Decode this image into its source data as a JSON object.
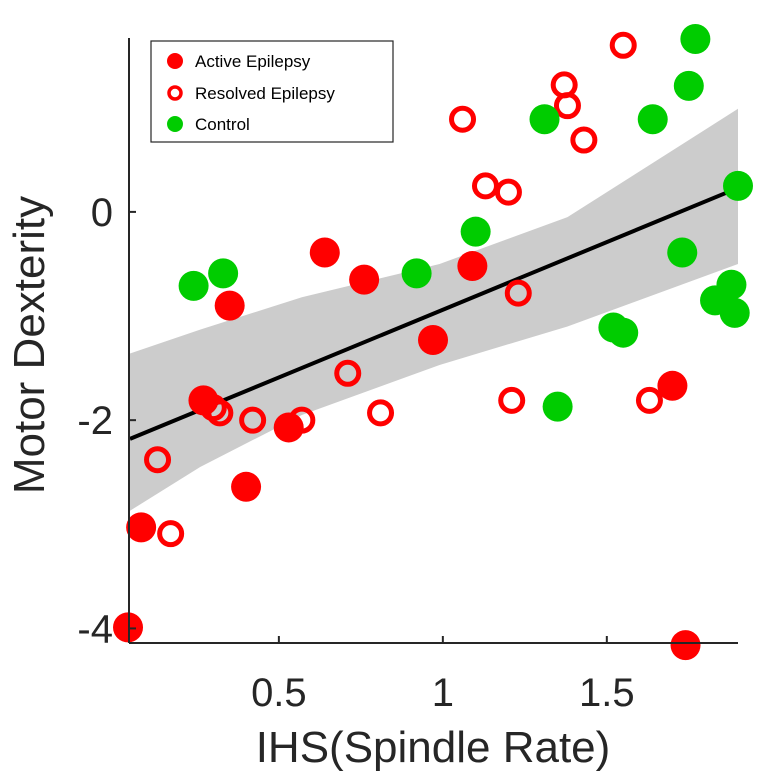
{
  "chart_data": {
    "type": "scatter",
    "title": "",
    "xlabel": "IHS(Spindle Rate)",
    "ylabel": "Motor Dexterity",
    "xlim": [
      0.043,
      1.9
    ],
    "ylim": [
      -4.14,
      1.67
    ],
    "xticks": [
      0.5,
      1,
      1.5
    ],
    "xtick_labels": [
      "0.5",
      "1",
      "1.5"
    ],
    "yticks": [
      0,
      -2,
      -4
    ],
    "ytick_labels": [
      "0",
      "-2",
      "-4"
    ],
    "grid": false,
    "legend": {
      "placement": "top-left",
      "entries": [
        "Active Epilepsy",
        "Resolved Epilepsy",
        "Control"
      ]
    },
    "series": [
      {
        "name": "Active Epilepsy",
        "marker": "filled-circle",
        "color": "#ff0000",
        "points": [
          [
            0.04,
            -3.99
          ],
          [
            0.08,
            -3.03
          ],
          [
            0.27,
            -1.81
          ],
          [
            0.35,
            -0.9
          ],
          [
            0.4,
            -2.64
          ],
          [
            0.53,
            -2.07
          ],
          [
            0.64,
            -0.39
          ],
          [
            0.76,
            -0.65
          ],
          [
            0.97,
            -1.23
          ],
          [
            1.09,
            -0.52
          ],
          [
            1.7,
            -1.67
          ],
          [
            1.74,
            -4.16
          ]
        ]
      },
      {
        "name": "Resolved Epilepsy",
        "marker": "open-circle",
        "color": "#ff0000",
        "points": [
          [
            0.13,
            -2.38
          ],
          [
            0.17,
            -3.09
          ],
          [
            0.3,
            -1.88
          ],
          [
            0.32,
            -1.93
          ],
          [
            0.42,
            -2.0
          ],
          [
            0.57,
            -2.0
          ],
          [
            0.71,
            -1.55
          ],
          [
            0.81,
            -1.93
          ],
          [
            1.06,
            0.89
          ],
          [
            1.13,
            0.25
          ],
          [
            1.2,
            0.19
          ],
          [
            1.21,
            -1.81
          ],
          [
            1.23,
            -0.78
          ],
          [
            1.37,
            1.22
          ],
          [
            1.38,
            1.02
          ],
          [
            1.43,
            0.69
          ],
          [
            1.55,
            1.6
          ],
          [
            1.63,
            -1.81
          ]
        ]
      },
      {
        "name": "Control",
        "marker": "filled-circle",
        "color": "#00cc00",
        "points": [
          [
            0.24,
            -0.71
          ],
          [
            0.33,
            -0.59
          ],
          [
            0.92,
            -0.59
          ],
          [
            1.1,
            -0.19
          ],
          [
            1.31,
            0.89
          ],
          [
            1.35,
            -1.87
          ],
          [
            1.52,
            -1.11
          ],
          [
            1.55,
            -1.16
          ],
          [
            1.64,
            0.89
          ],
          [
            1.73,
            -0.39
          ],
          [
            1.75,
            1.21
          ],
          [
            1.77,
            1.66
          ],
          [
            1.83,
            -0.85
          ],
          [
            1.88,
            -0.7
          ],
          [
            1.89,
            -0.97
          ],
          [
            1.9,
            0.25
          ]
        ]
      }
    ],
    "fit_line": {
      "x": [
        0.046,
        1.9
      ],
      "y": [
        -2.18,
        0.23
      ],
      "color": "#000000"
    },
    "confidence_band": {
      "color": "#cccccc",
      "x": [
        0.046,
        0.26,
        0.57,
        0.99,
        1.38,
        1.9
      ],
      "upper": [
        -1.36,
        -1.13,
        -0.82,
        -0.5,
        -0.05,
        0.99
      ],
      "lower": [
        -2.87,
        -2.45,
        -1.95,
        -1.47,
        -1.1,
        -0.5
      ]
    }
  }
}
